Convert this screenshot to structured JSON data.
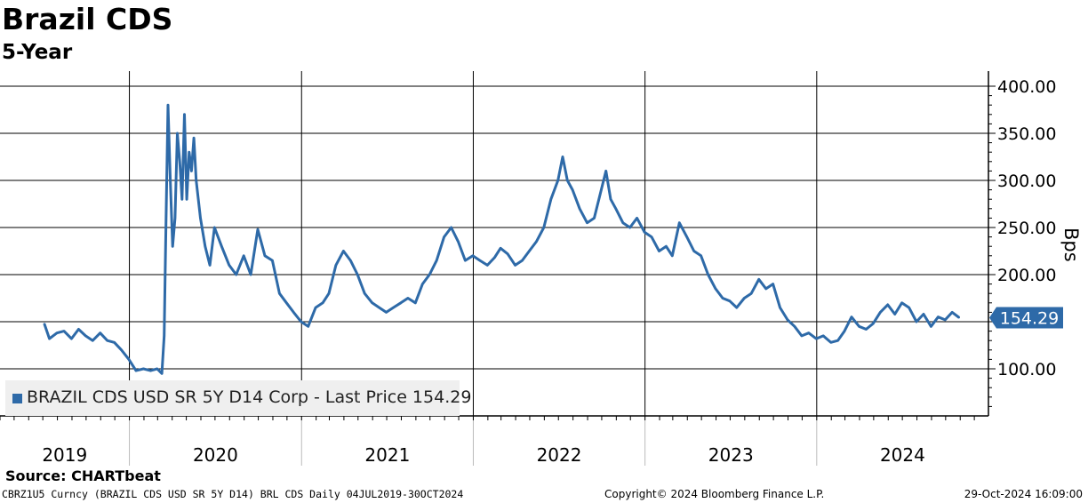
{
  "header": {
    "title": "Brazil CDS",
    "subtitle": "5-Year"
  },
  "colors": {
    "series": "#2e6aa8",
    "grid": "#000000",
    "legend_bg": "#efefef",
    "last_price_tag": "#2e6aa8"
  },
  "chart_data": {
    "type": "line",
    "ylabel": "Bps",
    "ylim": [
      50,
      410
    ],
    "y_ticks": [
      100,
      150,
      200,
      250,
      300,
      350,
      400
    ],
    "y_tick_labels": [
      "100.00",
      "",
      "200.00",
      "250.00",
      "300.00",
      "350.00",
      "400.00"
    ],
    "x_range": [
      "2019-04-01",
      "2024-12-31"
    ],
    "x_year_labels": [
      "2019",
      "2020",
      "2021",
      "2022",
      "2023",
      "2024"
    ],
    "grid": true,
    "legend_position": "bottom-left",
    "last_price_label": "154.29",
    "series": [
      {
        "name": "BRAZIL CDS USD SR 5Y D14 Corp - Last Price 154.29",
        "points": [
          [
            "2019-07-04",
            148
          ],
          [
            "2019-07-15",
            132
          ],
          [
            "2019-07-31",
            138
          ],
          [
            "2019-08-15",
            140
          ],
          [
            "2019-08-31",
            132
          ],
          [
            "2019-09-15",
            142
          ],
          [
            "2019-09-30",
            135
          ],
          [
            "2019-10-15",
            130
          ],
          [
            "2019-10-31",
            138
          ],
          [
            "2019-11-15",
            130
          ],
          [
            "2019-11-30",
            128
          ],
          [
            "2019-12-15",
            120
          ],
          [
            "2019-12-31",
            110
          ],
          [
            "2020-01-15",
            98
          ],
          [
            "2020-01-31",
            100
          ],
          [
            "2020-02-15",
            98
          ],
          [
            "2020-02-29",
            100
          ],
          [
            "2020-03-10",
            95
          ],
          [
            "2020-03-15",
            135
          ],
          [
            "2020-03-18",
            230
          ],
          [
            "2020-03-23",
            380
          ],
          [
            "2020-03-28",
            300
          ],
          [
            "2020-04-02",
            230
          ],
          [
            "2020-04-07",
            260
          ],
          [
            "2020-04-12",
            350
          ],
          [
            "2020-04-17",
            320
          ],
          [
            "2020-04-22",
            280
          ],
          [
            "2020-04-27",
            370
          ],
          [
            "2020-05-02",
            280
          ],
          [
            "2020-05-07",
            330
          ],
          [
            "2020-05-12",
            310
          ],
          [
            "2020-05-17",
            345
          ],
          [
            "2020-05-22",
            300
          ],
          [
            "2020-05-31",
            260
          ],
          [
            "2020-06-10",
            230
          ],
          [
            "2020-06-20",
            210
          ],
          [
            "2020-06-30",
            250
          ],
          [
            "2020-07-15",
            230
          ],
          [
            "2020-07-31",
            210
          ],
          [
            "2020-08-15",
            200
          ],
          [
            "2020-08-31",
            220
          ],
          [
            "2020-09-15",
            200
          ],
          [
            "2020-09-30",
            248
          ],
          [
            "2020-10-15",
            220
          ],
          [
            "2020-10-31",
            215
          ],
          [
            "2020-11-15",
            180
          ],
          [
            "2020-11-30",
            170
          ],
          [
            "2020-12-15",
            160
          ],
          [
            "2020-12-31",
            150
          ],
          [
            "2021-01-15",
            145
          ],
          [
            "2021-01-31",
            165
          ],
          [
            "2021-02-15",
            170
          ],
          [
            "2021-02-28",
            180
          ],
          [
            "2021-03-15",
            210
          ],
          [
            "2021-03-31",
            225
          ],
          [
            "2021-04-15",
            215
          ],
          [
            "2021-04-30",
            200
          ],
          [
            "2021-05-15",
            180
          ],
          [
            "2021-05-31",
            170
          ],
          [
            "2021-06-15",
            165
          ],
          [
            "2021-06-30",
            160
          ],
          [
            "2021-07-15",
            165
          ],
          [
            "2021-07-31",
            170
          ],
          [
            "2021-08-15",
            175
          ],
          [
            "2021-08-31",
            170
          ],
          [
            "2021-09-15",
            190
          ],
          [
            "2021-09-30",
            200
          ],
          [
            "2021-10-15",
            215
          ],
          [
            "2021-10-31",
            240
          ],
          [
            "2021-11-15",
            250
          ],
          [
            "2021-11-30",
            235
          ],
          [
            "2021-12-15",
            215
          ],
          [
            "2021-12-31",
            220
          ],
          [
            "2022-01-15",
            215
          ],
          [
            "2022-01-31",
            210
          ],
          [
            "2022-02-15",
            218
          ],
          [
            "2022-02-28",
            228
          ],
          [
            "2022-03-15",
            222
          ],
          [
            "2022-03-31",
            210
          ],
          [
            "2022-04-15",
            215
          ],
          [
            "2022-04-30",
            225
          ],
          [
            "2022-05-15",
            235
          ],
          [
            "2022-05-31",
            250
          ],
          [
            "2022-06-15",
            280
          ],
          [
            "2022-06-30",
            300
          ],
          [
            "2022-07-10",
            325
          ],
          [
            "2022-07-20",
            300
          ],
          [
            "2022-07-31",
            290
          ],
          [
            "2022-08-15",
            270
          ],
          [
            "2022-08-31",
            255
          ],
          [
            "2022-09-15",
            260
          ],
          [
            "2022-09-30",
            290
          ],
          [
            "2022-10-10",
            310
          ],
          [
            "2022-10-20",
            280
          ],
          [
            "2022-10-31",
            270
          ],
          [
            "2022-11-15",
            255
          ],
          [
            "2022-11-30",
            250
          ],
          [
            "2022-12-15",
            260
          ],
          [
            "2022-12-31",
            245
          ],
          [
            "2023-01-15",
            240
          ],
          [
            "2023-01-31",
            225
          ],
          [
            "2023-02-15",
            230
          ],
          [
            "2023-02-28",
            220
          ],
          [
            "2023-03-15",
            255
          ],
          [
            "2023-03-31",
            240
          ],
          [
            "2023-04-15",
            225
          ],
          [
            "2023-04-30",
            220
          ],
          [
            "2023-05-15",
            200
          ],
          [
            "2023-05-31",
            185
          ],
          [
            "2023-06-15",
            175
          ],
          [
            "2023-06-30",
            172
          ],
          [
            "2023-07-15",
            165
          ],
          [
            "2023-07-31",
            175
          ],
          [
            "2023-08-15",
            180
          ],
          [
            "2023-08-31",
            195
          ],
          [
            "2023-09-15",
            185
          ],
          [
            "2023-09-30",
            190
          ],
          [
            "2023-10-15",
            165
          ],
          [
            "2023-10-31",
            152
          ],
          [
            "2023-11-15",
            145
          ],
          [
            "2023-11-30",
            135
          ],
          [
            "2023-12-15",
            138
          ],
          [
            "2023-12-31",
            132
          ],
          [
            "2024-01-15",
            135
          ],
          [
            "2024-01-31",
            128
          ],
          [
            "2024-02-15",
            130
          ],
          [
            "2024-02-29",
            140
          ],
          [
            "2024-03-15",
            155
          ],
          [
            "2024-03-31",
            145
          ],
          [
            "2024-04-15",
            142
          ],
          [
            "2024-04-30",
            148
          ],
          [
            "2024-05-15",
            160
          ],
          [
            "2024-05-31",
            168
          ],
          [
            "2024-06-15",
            158
          ],
          [
            "2024-06-30",
            170
          ],
          [
            "2024-07-15",
            165
          ],
          [
            "2024-07-31",
            150
          ],
          [
            "2024-08-15",
            158
          ],
          [
            "2024-08-31",
            145
          ],
          [
            "2024-09-15",
            155
          ],
          [
            "2024-09-30",
            152
          ],
          [
            "2024-10-15",
            160
          ],
          [
            "2024-10-30",
            154.29
          ]
        ]
      }
    ]
  },
  "legend": {
    "text": "BRAZIL CDS USD SR 5Y D14 Corp - Last Price 154.29"
  },
  "source": "Source: CHARTbeat",
  "footer": {
    "left": "CBRZ1U5 Curncy (BRAZIL CDS USD SR 5Y D14) BRL CDS  Daily 04JUL2019-30OCT2024",
    "mid": "Copyright© 2024 Bloomberg Finance L.P.",
    "right": "29-Oct-2024 16:09:00"
  }
}
